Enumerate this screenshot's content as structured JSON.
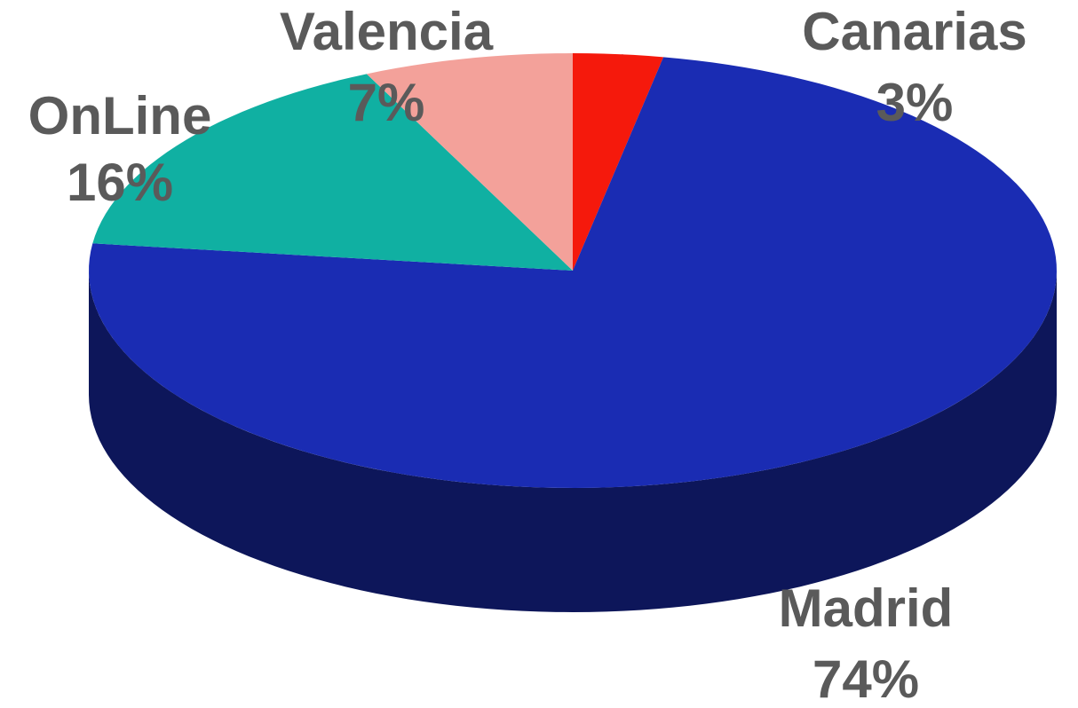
{
  "chart_data": {
    "type": "pie",
    "categories": [
      "Canarias",
      "Madrid",
      "OnLine",
      "Valencia"
    ],
    "values": [
      3,
      74,
      16,
      7
    ],
    "value_labels": [
      "3%",
      "74%",
      "16%",
      "7%"
    ],
    "colors": [
      "#f5190c",
      "#1a2cb3",
      "#10b0a2",
      "#f3a19a"
    ]
  }
}
